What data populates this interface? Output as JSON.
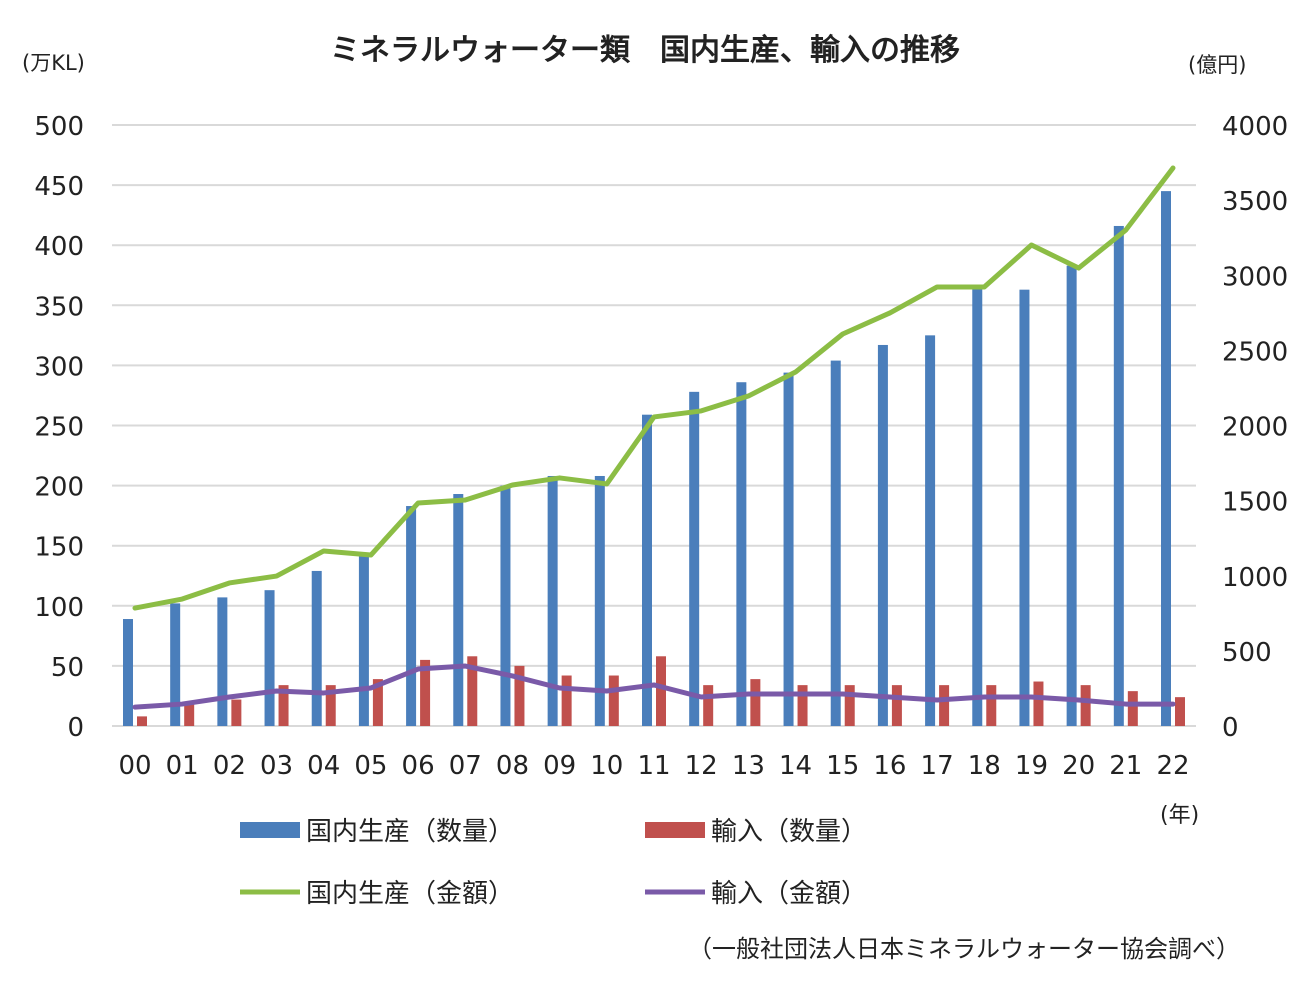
{
  "chart_data": {
    "type": "bar+line",
    "title": "ミネラルウォーター類　国内生産、輸入の推移",
    "ylabel_left": "(万KL)",
    "ylabel_right": "(億円)",
    "xlabel": "(年)",
    "source": "（一般社団法人日本ミネラルウォーター協会調べ）",
    "ylim_left": [
      0,
      500
    ],
    "ylim_right": [
      0,
      4000
    ],
    "yticks_left": [
      0,
      50,
      100,
      150,
      200,
      250,
      300,
      350,
      400,
      450,
      500
    ],
    "yticks_right": [
      0,
      500,
      1000,
      1500,
      2000,
      2500,
      3000,
      3500,
      4000
    ],
    "grid": true,
    "legend_position": "bottom",
    "categories": [
      "00",
      "01",
      "02",
      "03",
      "04",
      "05",
      "06",
      "07",
      "08",
      "09",
      "10",
      "11",
      "12",
      "13",
      "14",
      "15",
      "16",
      "17",
      "18",
      "19",
      "20",
      "21",
      "22"
    ],
    "series": [
      {
        "name": "国内生産（数量）",
        "type": "bar",
        "axis": "left",
        "color": "#4a7ebb",
        "values": [
          89,
          102,
          107,
          113,
          129,
          141,
          183,
          193,
          200,
          208,
          208,
          259,
          278,
          286,
          294,
          304,
          317,
          325,
          364,
          363,
          383,
          416,
          445
        ]
      },
      {
        "name": "輸入（数量）",
        "type": "bar",
        "axis": "left",
        "color": "#c0504d",
        "values": [
          8,
          20,
          22,
          34,
          34,
          39,
          55,
          58,
          50,
          42,
          42,
          58,
          34,
          39,
          34,
          34,
          34,
          34,
          34,
          37,
          34,
          29,
          24
        ]
      },
      {
        "name": "国内生産（金額）",
        "type": "line",
        "axis": "right",
        "color": "#8cbd45",
        "values": [
          785,
          845,
          952,
          998,
          1165,
          1138,
          1484,
          1504,
          1604,
          1651,
          1611,
          2057,
          2097,
          2196,
          2356,
          2609,
          2749,
          2922,
          2922,
          3201,
          3048,
          3301,
          3714
        ]
      },
      {
        "name": "輸入（金額）",
        "type": "line",
        "axis": "right",
        "color": "#7a5aa8",
        "values": [
          126,
          146,
          193,
          233,
          220,
          253,
          379,
          399,
          333,
          253,
          233,
          273,
          193,
          213,
          213,
          213,
          193,
          173,
          193,
          193,
          173,
          146,
          146
        ]
      }
    ]
  }
}
